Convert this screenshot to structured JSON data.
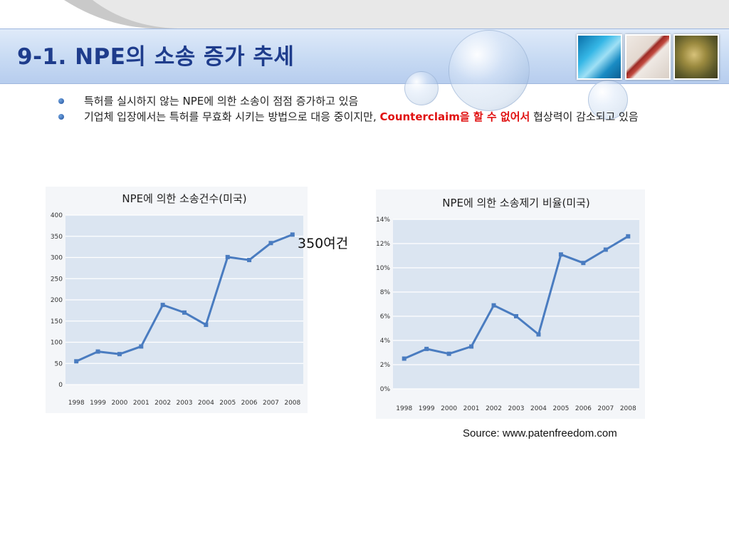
{
  "slide": {
    "title": "9-1. NPE의 소송 증가 추세",
    "bullets": [
      {
        "text": "특허를 실시하지 않는 NPE에 의한 소송이 점점 증가하고 있음"
      },
      {
        "text_before": "기업체 입장에서는 특허를 무효화 시키는 방법으로 대응 중이지만, ",
        "highlight": "Counterclaim을 할 수 없어서",
        "text_after": " 협상력이 감소되고 있음"
      }
    ],
    "annotation": "350여건",
    "source": "Source: www.patenfreedom.com",
    "colors": {
      "title": "#1e3c8c",
      "highlight": "#e01010",
      "series": "#4a7cc0"
    },
    "decor_icons": [
      "blue-fabric-thumbnail-icon",
      "certificate-thumbnail-icon",
      "plant-thumbnail-icon"
    ]
  },
  "chart_data": [
    {
      "type": "line",
      "title": "NPE에 의한 소송건수(미국)",
      "categories": [
        "1998",
        "1999",
        "2000",
        "2001",
        "2002",
        "2003",
        "2004",
        "2005",
        "2006",
        "2007",
        "2008"
      ],
      "series": [
        {
          "values": [
            55,
            78,
            72,
            90,
            188,
            170,
            141,
            301,
            294,
            334,
            354
          ]
        }
      ],
      "ylim": [
        0,
        400
      ],
      "yticks": [
        "0",
        "50",
        "100",
        "150",
        "200",
        "250",
        "300",
        "350",
        "400"
      ],
      "grid": true,
      "xlabel": "",
      "ylabel": ""
    },
    {
      "type": "line",
      "title": "NPE에 의한 소송제기 비율(미국)",
      "categories": [
        "1998",
        "1999",
        "2000",
        "2001",
        "2002",
        "2003",
        "2004",
        "2005",
        "2006",
        "2007",
        "2008"
      ],
      "series": [
        {
          "values": [
            2.5,
            3.3,
            2.9,
            3.5,
            6.9,
            6.0,
            4.5,
            11.1,
            10.4,
            11.5,
            12.6
          ]
        }
      ],
      "ylim": [
        0,
        14
      ],
      "yticks": [
        "0%",
        "2%",
        "4%",
        "6%",
        "8%",
        "10%",
        "12%",
        "14%"
      ],
      "grid": true,
      "xlabel": "",
      "ylabel": ""
    }
  ]
}
